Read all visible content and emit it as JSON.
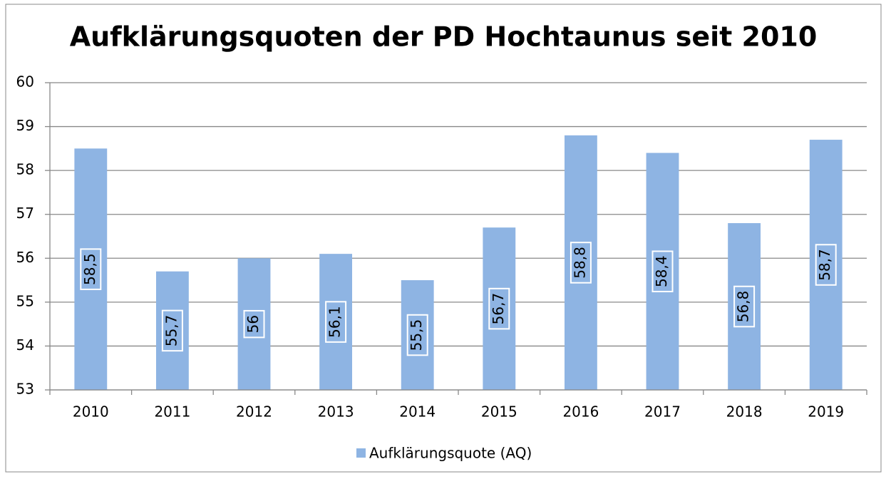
{
  "chart_data": {
    "type": "bar",
    "title": "Aufklärungsquoten der PD Hochtaunus seit 2010",
    "categories": [
      "2010",
      "2011",
      "2012",
      "2013",
      "2014",
      "2015",
      "2016",
      "2017",
      "2018",
      "2019"
    ],
    "series": [
      {
        "name": "Aufklärungsquote (AQ)",
        "color": "#8eb4e3",
        "values": [
          58.5,
          55.7,
          56,
          56.1,
          55.5,
          56.7,
          58.8,
          58.4,
          56.8,
          58.7
        ],
        "value_labels": [
          "58,5",
          "55,7",
          "56",
          "56,1",
          "55,5",
          "56,7",
          "58,8",
          "58,4",
          "56,8",
          "58,7"
        ]
      }
    ],
    "ylim": [
      53,
      60
    ],
    "yticks": [
      53,
      54,
      55,
      56,
      57,
      58,
      59,
      60
    ],
    "grid": true,
    "legend": "bottom"
  }
}
